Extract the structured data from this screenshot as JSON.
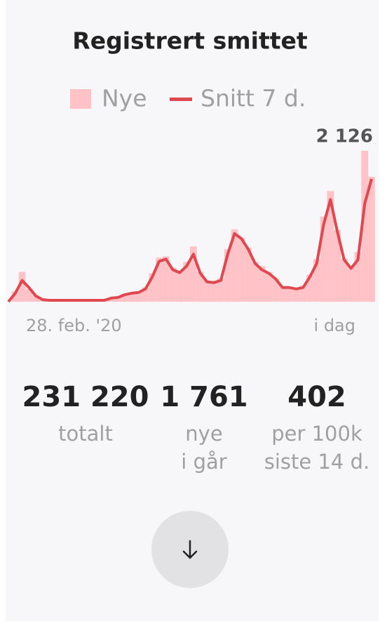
{
  "chart_data": {
    "type": "bar-line",
    "title": "Registrert smittet",
    "categories": [
      "28. feb. '20",
      null,
      null,
      null,
      null,
      null,
      null,
      null,
      null,
      null,
      null,
      null,
      null,
      null,
      null,
      null,
      null,
      null,
      null,
      null,
      null,
      null,
      null,
      null,
      null,
      null,
      null,
      null,
      null,
      null,
      null,
      null,
      null,
      null,
      null,
      null,
      null,
      null,
      null,
      null,
      null,
      null,
      null,
      null,
      null,
      null,
      null,
      null,
      null,
      null,
      null,
      null,
      null,
      "i dag"
    ],
    "series": [
      {
        "name": "Nye",
        "color": "#ffc3c7",
        "values": [
          0,
          150,
          420,
          180,
          90,
          30,
          20,
          25,
          15,
          20,
          25,
          20,
          20,
          25,
          30,
          60,
          70,
          110,
          130,
          150,
          200,
          400,
          620,
          640,
          480,
          440,
          560,
          780,
          420,
          300,
          290,
          330,
          740,
          1020,
          900,
          760,
          560,
          500,
          420,
          330,
          220,
          210,
          190,
          230,
          380,
          600,
          1200,
          1560,
          1010,
          610,
          500,
          700,
          2126,
          1761
        ],
        "value_labels": [
          null,
          null,
          null,
          null,
          null,
          null,
          null,
          null,
          null,
          null,
          null,
          null,
          null,
          null,
          null,
          null,
          null,
          null,
          null,
          null,
          null,
          null,
          null,
          null,
          null,
          null,
          null,
          null,
          null,
          null,
          null,
          null,
          null,
          null,
          null,
          null,
          null,
          null,
          null,
          null,
          null,
          null,
          null,
          null,
          null,
          null,
          null,
          null,
          null,
          null,
          null,
          null,
          "2 126",
          null
        ]
      },
      {
        "name": "Snitt 7 d.",
        "color": "#e0484f",
        "values": [
          0,
          120,
          300,
          200,
          80,
          30,
          20,
          20,
          20,
          20,
          20,
          20,
          20,
          20,
          20,
          50,
          60,
          100,
          120,
          130,
          180,
          350,
          570,
          600,
          450,
          410,
          500,
          670,
          400,
          280,
          270,
          300,
          670,
          960,
          890,
          740,
          540,
          450,
          400,
          320,
          200,
          200,
          180,
          200,
          350,
          540,
          1090,
          1440,
          990,
          590,
          470,
          590,
          1380,
          1730
        ]
      }
    ]
  },
  "stats": [
    {
      "value": "231 220",
      "label": [
        "totalt"
      ]
    },
    {
      "value": "1 761",
      "label": [
        "nye",
        "i går"
      ]
    },
    {
      "value": "402",
      "label": [
        "per 100k",
        "siste 14 d."
      ]
    }
  ]
}
